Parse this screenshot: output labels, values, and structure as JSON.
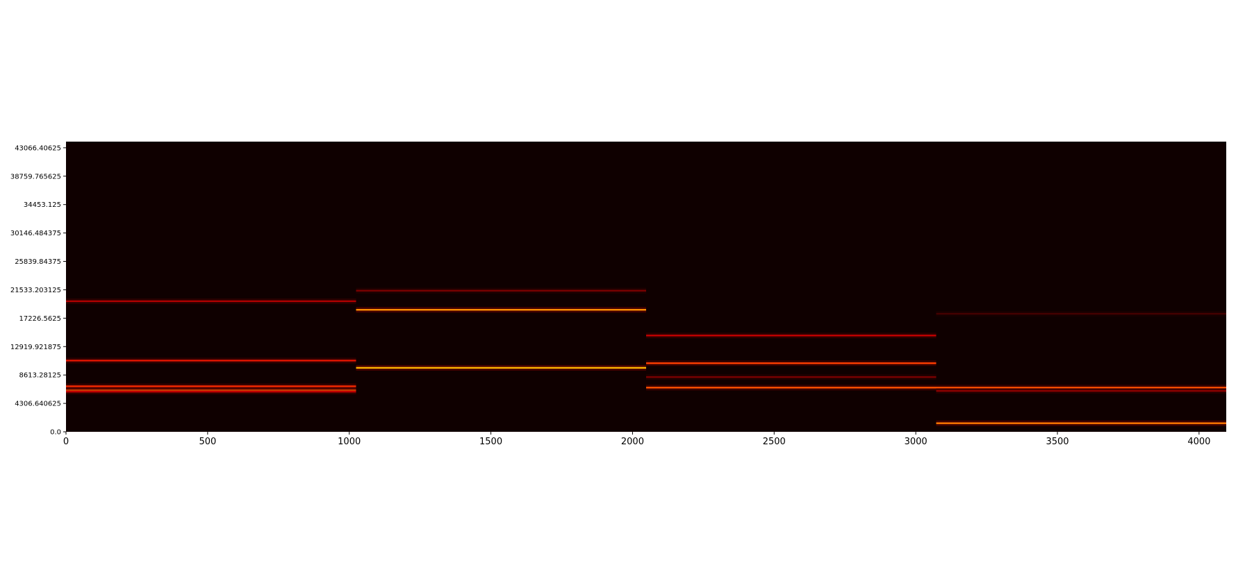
{
  "chart_data": {
    "type": "heatmap",
    "title": "",
    "xlabel": "",
    "ylabel": "",
    "xlim": [
      0,
      4096
    ],
    "ylim": [
      0,
      44000
    ],
    "colormap": "hot",
    "background_color": "#0f0000",
    "x_ticks": [
      0,
      500,
      1000,
      1500,
      2000,
      2500,
      3000,
      3500,
      4000
    ],
    "x_tick_labels": [
      "0",
      "500",
      "1000",
      "1500",
      "2000",
      "2500",
      "3000",
      "3500",
      "4000"
    ],
    "y_ticks": [
      0.0,
      4306.640625,
      8613.28125,
      12919.921875,
      17226.5625,
      21533.203125,
      25839.84375,
      30146.484375,
      34453.125,
      38759.765625,
      43066.40625
    ],
    "y_tick_labels": [
      "0.0",
      "4306.640625",
      "8613.28125",
      "12919.921875",
      "17226.5625",
      "21533.203125",
      "25839.84375",
      "30146.484375",
      "34453.125",
      "38759.765625",
      "43066.40625"
    ],
    "segments": [
      {
        "x_start": 0,
        "x_end": 1024,
        "lines": [
          {
            "freq": 19800,
            "intensity": 0.45
          },
          {
            "freq": 10800,
            "intensity": 0.6
          },
          {
            "freq": 6900,
            "intensity": 0.65
          },
          {
            "freq": 6300,
            "intensity": 0.8
          },
          {
            "freq": 6100,
            "intensity": 0.5
          }
        ]
      },
      {
        "x_start": 1024,
        "x_end": 2048,
        "lines": [
          {
            "freq": 21400,
            "intensity": 0.3
          },
          {
            "freq": 18500,
            "intensity": 0.9
          },
          {
            "freq": 9700,
            "intensity": 1.0
          }
        ]
      },
      {
        "x_start": 2048,
        "x_end": 3072,
        "lines": [
          {
            "freq": 14600,
            "intensity": 0.5
          },
          {
            "freq": 10400,
            "intensity": 0.7
          },
          {
            "freq": 8300,
            "intensity": 0.3
          },
          {
            "freq": 6700,
            "intensity": 0.75
          }
        ]
      },
      {
        "x_start": 3072,
        "x_end": 4096,
        "lines": [
          {
            "freq": 17900,
            "intensity": 0.15
          },
          {
            "freq": 6700,
            "intensity": 0.75
          },
          {
            "freq": 6200,
            "intensity": 0.35
          },
          {
            "freq": 1300,
            "intensity": 0.85
          }
        ]
      }
    ]
  }
}
